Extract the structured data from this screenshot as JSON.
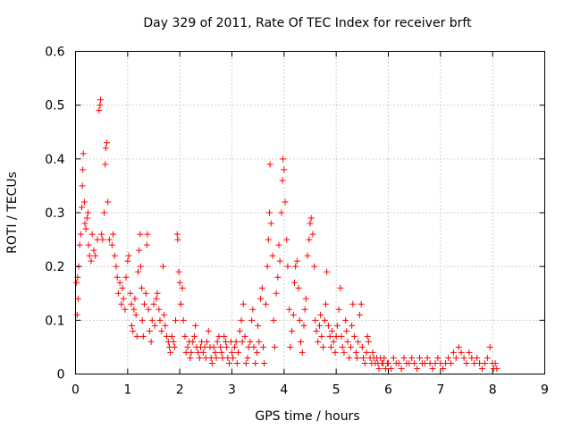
{
  "chart_data": {
    "type": "scatter",
    "title": "Day 329 of 2011, Rate Of TEC Index for receiver brft",
    "xlabel": "GPS time / hours",
    "ylabel": "ROTI / TECUs",
    "xlim": [
      0,
      9
    ],
    "ylim": [
      0,
      0.6
    ],
    "xticks": [
      0,
      1,
      2,
      3,
      4,
      5,
      6,
      7,
      8,
      9
    ],
    "xtick_labels": [
      "0",
      "1",
      "2",
      "3",
      "4",
      "5",
      "6",
      "7",
      "8",
      "9"
    ],
    "yticks": [
      0,
      0.1,
      0.2,
      0.3,
      0.4,
      0.5,
      0.6
    ],
    "ytick_labels": [
      "0",
      "0.1",
      "0.2",
      "0.3",
      "0.4",
      "0.5",
      "0.6"
    ],
    "grid": true,
    "marker": "+",
    "color": "#ff0000",
    "series": [
      {
        "name": "ROTI",
        "points": [
          [
            0.02,
            0.17
          ],
          [
            0.03,
            0.11
          ],
          [
            0.04,
            0.18
          ],
          [
            0.05,
            0.14
          ],
          [
            0.06,
            0.2
          ],
          [
            0.08,
            0.24
          ],
          [
            0.1,
            0.26
          ],
          [
            0.12,
            0.31
          ],
          [
            0.13,
            0.35
          ],
          [
            0.14,
            0.38
          ],
          [
            0.15,
            0.41
          ],
          [
            0.17,
            0.32
          ],
          [
            0.18,
            0.28
          ],
          [
            0.2,
            0.27
          ],
          [
            0.22,
            0.29
          ],
          [
            0.24,
            0.3
          ],
          [
            0.25,
            0.24
          ],
          [
            0.27,
            0.22
          ],
          [
            0.3,
            0.21
          ],
          [
            0.32,
            0.26
          ],
          [
            0.35,
            0.23
          ],
          [
            0.38,
            0.22
          ],
          [
            0.42,
            0.25
          ],
          [
            0.45,
            0.49
          ],
          [
            0.47,
            0.5
          ],
          [
            0.48,
            0.51
          ],
          [
            0.5,
            0.26
          ],
          [
            0.52,
            0.25
          ],
          [
            0.55,
            0.3
          ],
          [
            0.57,
            0.39
          ],
          [
            0.58,
            0.42
          ],
          [
            0.6,
            0.43
          ],
          [
            0.62,
            0.32
          ],
          [
            0.65,
            0.25
          ],
          [
            0.7,
            0.24
          ],
          [
            0.72,
            0.26
          ],
          [
            0.75,
            0.22
          ],
          [
            0.78,
            0.2
          ],
          [
            0.8,
            0.18
          ],
          [
            0.82,
            0.15
          ],
          [
            0.85,
            0.17
          ],
          [
            0.88,
            0.13
          ],
          [
            0.9,
            0.16
          ],
          [
            0.92,
            0.14
          ],
          [
            0.95,
            0.12
          ],
          [
            0.97,
            0.18
          ],
          [
            1.0,
            0.21
          ],
          [
            1.02,
            0.22
          ],
          [
            1.05,
            0.15
          ],
          [
            1.07,
            0.13
          ],
          [
            1.08,
            0.09
          ],
          [
            1.1,
            0.08
          ],
          [
            1.12,
            0.12
          ],
          [
            1.14,
            0.14
          ],
          [
            1.16,
            0.11
          ],
          [
            1.18,
            0.07
          ],
          [
            1.2,
            0.19
          ],
          [
            1.22,
            0.23
          ],
          [
            1.24,
            0.26
          ],
          [
            1.25,
            0.2
          ],
          [
            1.27,
            0.16
          ],
          [
            1.28,
            0.1
          ],
          [
            1.3,
            0.07
          ],
          [
            1.32,
            0.13
          ],
          [
            1.35,
            0.15
          ],
          [
            1.37,
            0.24
          ],
          [
            1.38,
            0.26
          ],
          [
            1.4,
            0.12
          ],
          [
            1.42,
            0.08
          ],
          [
            1.45,
            0.06
          ],
          [
            1.47,
            0.1
          ],
          [
            1.5,
            0.13
          ],
          [
            1.52,
            0.09
          ],
          [
            1.55,
            0.14
          ],
          [
            1.57,
            0.15
          ],
          [
            1.6,
            0.12
          ],
          [
            1.62,
            0.1
          ],
          [
            1.65,
            0.08
          ],
          [
            1.68,
            0.2
          ],
          [
            1.7,
            0.11
          ],
          [
            1.72,
            0.09
          ],
          [
            1.75,
            0.07
          ],
          [
            1.78,
            0.06
          ],
          [
            1.8,
            0.05
          ],
          [
            1.82,
            0.04
          ],
          [
            1.85,
            0.07
          ],
          [
            1.88,
            0.06
          ],
          [
            1.9,
            0.05
          ],
          [
            1.92,
            0.1
          ],
          [
            1.95,
            0.26
          ],
          [
            1.96,
            0.25
          ],
          [
            1.98,
            0.19
          ],
          [
            2.0,
            0.17
          ],
          [
            2.02,
            0.13
          ],
          [
            2.05,
            0.16
          ],
          [
            2.07,
            0.1
          ],
          [
            2.1,
            0.07
          ],
          [
            2.12,
            0.04
          ],
          [
            2.15,
            0.05
          ],
          [
            2.18,
            0.06
          ],
          [
            2.2,
            0.03
          ],
          [
            2.22,
            0.04
          ],
          [
            2.25,
            0.06
          ],
          [
            2.28,
            0.07
          ],
          [
            2.3,
            0.09
          ],
          [
            2.32,
            0.05
          ],
          [
            2.35,
            0.04
          ],
          [
            2.38,
            0.03
          ],
          [
            2.4,
            0.05
          ],
          [
            2.42,
            0.06
          ],
          [
            2.45,
            0.04
          ],
          [
            2.48,
            0.05
          ],
          [
            2.5,
            0.03
          ],
          [
            2.52,
            0.06
          ],
          [
            2.55,
            0.08
          ],
          [
            2.58,
            0.05
          ],
          [
            2.6,
            0.03
          ],
          [
            2.62,
            0.02
          ],
          [
            2.65,
            0.05
          ],
          [
            2.68,
            0.04
          ],
          [
            2.7,
            0.03
          ],
          [
            2.72,
            0.06
          ],
          [
            2.75,
            0.07
          ],
          [
            2.78,
            0.05
          ],
          [
            2.8,
            0.04
          ],
          [
            2.82,
            0.03
          ],
          [
            2.85,
            0.07
          ],
          [
            2.88,
            0.06
          ],
          [
            2.9,
            0.05
          ],
          [
            2.92,
            0.03
          ],
          [
            2.95,
            0.02
          ],
          [
            2.98,
            0.06
          ],
          [
            3.0,
            0.04
          ],
          [
            3.02,
            0.03
          ],
          [
            3.05,
            0.05
          ],
          [
            3.08,
            0.06
          ],
          [
            3.1,
            0.02
          ],
          [
            3.12,
            0.04
          ],
          [
            3.15,
            0.08
          ],
          [
            3.18,
            0.1
          ],
          [
            3.2,
            0.06
          ],
          [
            3.22,
            0.13
          ],
          [
            3.25,
            0.07
          ],
          [
            3.27,
            0.02
          ],
          [
            3.3,
            0.03
          ],
          [
            3.32,
            0.05
          ],
          [
            3.35,
            0.06
          ],
          [
            3.38,
            0.1
          ],
          [
            3.4,
            0.12
          ],
          [
            3.42,
            0.05
          ],
          [
            3.45,
            0.02
          ],
          [
            3.48,
            0.04
          ],
          [
            3.5,
            0.09
          ],
          [
            3.52,
            0.06
          ],
          [
            3.55,
            0.14
          ],
          [
            3.58,
            0.16
          ],
          [
            3.6,
            0.05
          ],
          [
            3.62,
            0.02
          ],
          [
            3.65,
            0.13
          ],
          [
            3.68,
            0.2
          ],
          [
            3.7,
            0.25
          ],
          [
            3.72,
            0.3
          ],
          [
            3.73,
            0.39
          ],
          [
            3.75,
            0.28
          ],
          [
            3.78,
            0.22
          ],
          [
            3.8,
            0.1
          ],
          [
            3.82,
            0.05
          ],
          [
            3.85,
            0.15
          ],
          [
            3.88,
            0.18
          ],
          [
            3.9,
            0.24
          ],
          [
            3.92,
            0.21
          ],
          [
            3.95,
            0.3
          ],
          [
            3.97,
            0.36
          ],
          [
            3.98,
            0.4
          ],
          [
            4.0,
            0.38
          ],
          [
            4.02,
            0.32
          ],
          [
            4.05,
            0.25
          ],
          [
            4.07,
            0.2
          ],
          [
            4.1,
            0.12
          ],
          [
            4.12,
            0.05
          ],
          [
            4.15,
            0.08
          ],
          [
            4.18,
            0.11
          ],
          [
            4.2,
            0.17
          ],
          [
            4.22,
            0.2
          ],
          [
            4.25,
            0.21
          ],
          [
            4.28,
            0.16
          ],
          [
            4.3,
            0.1
          ],
          [
            4.32,
            0.06
          ],
          [
            4.35,
            0.04
          ],
          [
            4.38,
            0.09
          ],
          [
            4.4,
            0.12
          ],
          [
            4.42,
            0.14
          ],
          [
            4.45,
            0.22
          ],
          [
            4.48,
            0.25
          ],
          [
            4.5,
            0.28
          ],
          [
            4.52,
            0.29
          ],
          [
            4.55,
            0.26
          ],
          [
            4.58,
            0.2
          ],
          [
            4.6,
            0.1
          ],
          [
            4.62,
            0.08
          ],
          [
            4.65,
            0.06
          ],
          [
            4.68,
            0.09
          ],
          [
            4.7,
            0.11
          ],
          [
            4.72,
            0.07
          ],
          [
            4.75,
            0.05
          ],
          [
            4.78,
            0.1
          ],
          [
            4.8,
            0.13
          ],
          [
            4.82,
            0.19
          ],
          [
            4.85,
            0.09
          ],
          [
            4.88,
            0.07
          ],
          [
            4.9,
            0.05
          ],
          [
            4.92,
            0.08
          ],
          [
            4.95,
            0.06
          ],
          [
            4.98,
            0.04
          ],
          [
            5.0,
            0.07
          ],
          [
            5.02,
            0.09
          ],
          [
            5.05,
            0.12
          ],
          [
            5.08,
            0.16
          ],
          [
            5.1,
            0.07
          ],
          [
            5.12,
            0.05
          ],
          [
            5.15,
            0.04
          ],
          [
            5.18,
            0.1
          ],
          [
            5.2,
            0.08
          ],
          [
            5.22,
            0.06
          ],
          [
            5.25,
            0.03
          ],
          [
            5.28,
            0.05
          ],
          [
            5.3,
            0.09
          ],
          [
            5.32,
            0.13
          ],
          [
            5.35,
            0.07
          ],
          [
            5.38,
            0.04
          ],
          [
            5.4,
            0.03
          ],
          [
            5.42,
            0.06
          ],
          [
            5.45,
            0.11
          ],
          [
            5.48,
            0.13
          ],
          [
            5.5,
            0.05
          ],
          [
            5.52,
            0.03
          ],
          [
            5.55,
            0.02
          ],
          [
            5.58,
            0.04
          ],
          [
            5.6,
            0.07
          ],
          [
            5.62,
            0.06
          ],
          [
            5.65,
            0.03
          ],
          [
            5.68,
            0.02
          ],
          [
            5.7,
            0.04
          ],
          [
            5.72,
            0.03
          ],
          [
            5.75,
            0.02
          ],
          [
            5.78,
            0.03
          ],
          [
            5.8,
            0.02
          ],
          [
            5.82,
            0.01
          ],
          [
            5.85,
            0.03
          ],
          [
            5.88,
            0.02
          ],
          [
            5.9,
            0.02
          ],
          [
            5.92,
            0.03
          ],
          [
            5.95,
            0.01
          ],
          [
            5.98,
            0.02
          ],
          [
            6.0,
            0.02
          ],
          [
            6.05,
            0.01
          ],
          [
            6.1,
            0.03
          ],
          [
            6.15,
            0.02
          ],
          [
            6.2,
            0.02
          ],
          [
            6.25,
            0.01
          ],
          [
            6.3,
            0.03
          ],
          [
            6.35,
            0.02
          ],
          [
            6.4,
            0.02
          ],
          [
            6.45,
            0.03
          ],
          [
            6.5,
            0.02
          ],
          [
            6.55,
            0.01
          ],
          [
            6.6,
            0.03
          ],
          [
            6.65,
            0.02
          ],
          [
            6.7,
            0.02
          ],
          [
            6.75,
            0.03
          ],
          [
            6.8,
            0.02
          ],
          [
            6.85,
            0.01
          ],
          [
            6.9,
            0.02
          ],
          [
            6.95,
            0.03
          ],
          [
            7.0,
            0.02
          ],
          [
            7.05,
            0.01
          ],
          [
            7.1,
            0.02
          ],
          [
            7.15,
            0.03
          ],
          [
            7.2,
            0.02
          ],
          [
            7.25,
            0.04
          ],
          [
            7.3,
            0.03
          ],
          [
            7.35,
            0.05
          ],
          [
            7.4,
            0.04
          ],
          [
            7.45,
            0.03
          ],
          [
            7.5,
            0.02
          ],
          [
            7.55,
            0.04
          ],
          [
            7.6,
            0.03
          ],
          [
            7.65,
            0.02
          ],
          [
            7.7,
            0.03
          ],
          [
            7.75,
            0.02
          ],
          [
            7.8,
            0.01
          ],
          [
            7.85,
            0.02
          ],
          [
            7.9,
            0.03
          ],
          [
            7.95,
            0.05
          ],
          [
            8.0,
            0.02
          ],
          [
            8.02,
            0.01
          ],
          [
            8.05,
            0.02
          ],
          [
            8.08,
            0.01
          ]
        ]
      }
    ]
  }
}
